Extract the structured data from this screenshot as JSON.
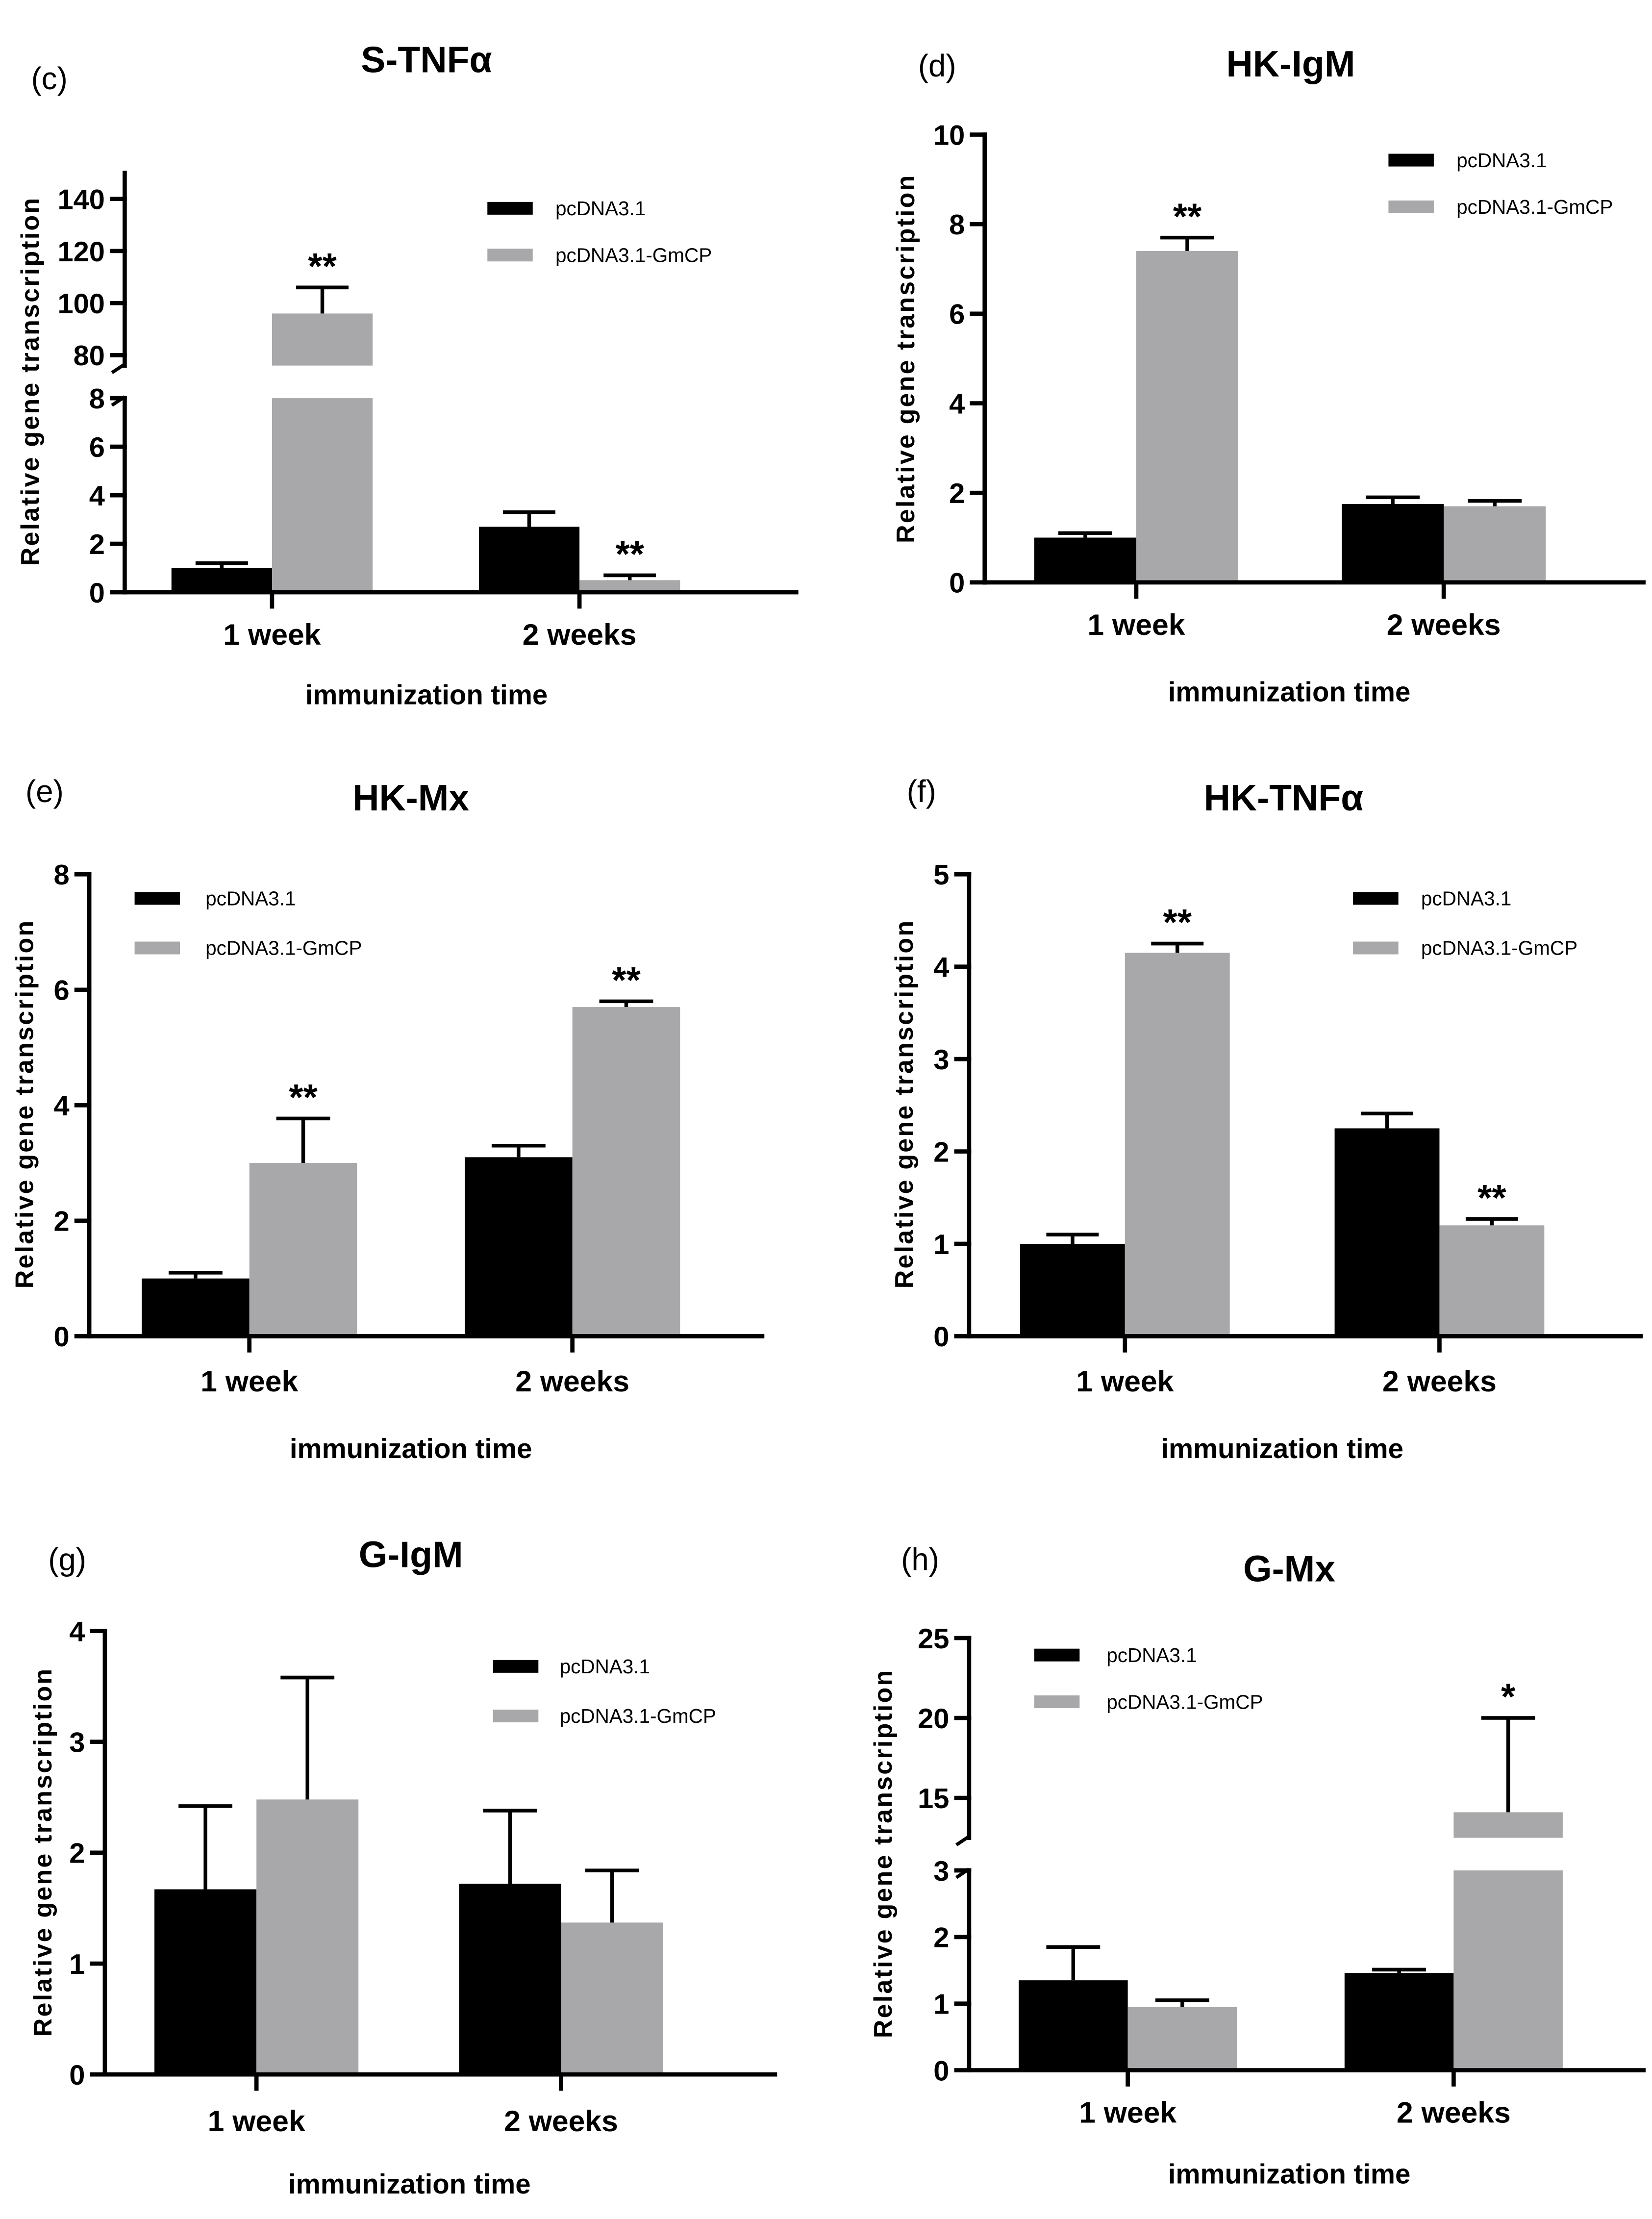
{
  "chart_data": [
    {
      "panel": "(c)",
      "type": "bar",
      "title": "S-TNFα",
      "xlabel": "immunization time",
      "ylabel": "Relative gene transcription",
      "categories": [
        "1 week",
        "2 weeks"
      ],
      "y_axis_break": true,
      "ylim": [
        0,
        8
      ],
      "yticks": [
        0,
        2,
        4,
        6,
        8
      ],
      "ylim_upper": [
        76,
        150
      ],
      "yticks_upper": [
        80,
        100,
        120,
        140
      ],
      "series": [
        {
          "name": "pcDNA3.1",
          "color": "#000000",
          "values": [
            1.0,
            2.7
          ],
          "errors": [
            0.2,
            0.6
          ],
          "significance": [
            null,
            null
          ]
        },
        {
          "name": "pcDNA3.1-GmCP",
          "color": "#a8a8aa",
          "values": [
            96,
            0.5
          ],
          "errors": [
            10,
            0.2
          ],
          "significance": [
            "**",
            "**"
          ]
        }
      ]
    },
    {
      "panel": "(d)",
      "type": "bar",
      "title": "HK-IgM",
      "xlabel": "immunization time",
      "ylabel": "Relative gene transcription",
      "categories": [
        "1 week",
        "2 weeks"
      ],
      "y_axis_break": false,
      "ylim": [
        0,
        10
      ],
      "yticks": [
        0,
        2,
        4,
        6,
        8,
        10
      ],
      "series": [
        {
          "name": "pcDNA3.1",
          "color": "#000000",
          "values": [
            1.0,
            1.75
          ],
          "errors": [
            0.1,
            0.15
          ],
          "significance": [
            null,
            null
          ]
        },
        {
          "name": "pcDNA3.1-GmCP",
          "color": "#a8a8aa",
          "values": [
            7.4,
            1.7
          ],
          "errors": [
            0.3,
            0.12
          ],
          "significance": [
            "**",
            null
          ]
        }
      ]
    },
    {
      "panel": "(e)",
      "type": "bar",
      "title": "HK-Mx",
      "xlabel": "immunization time",
      "ylabel": "Relative gene transcription",
      "categories": [
        "1 week",
        "2 weeks"
      ],
      "y_axis_break": false,
      "ylim": [
        0,
        8
      ],
      "yticks": [
        0,
        2,
        4,
        6,
        8
      ],
      "series": [
        {
          "name": "pcDNA3.1",
          "color": "#000000",
          "values": [
            1.0,
            3.1
          ],
          "errors": [
            0.1,
            0.2
          ],
          "significance": [
            null,
            null
          ]
        },
        {
          "name": "pcDNA3.1-GmCP",
          "color": "#a8a8aa",
          "values": [
            3.0,
            5.7
          ],
          "errors": [
            0.77,
            0.1
          ],
          "significance": [
            "**",
            "**"
          ]
        }
      ]
    },
    {
      "panel": "(f)",
      "type": "bar",
      "title": "HK-TNFα",
      "xlabel": "immunization time",
      "ylabel": "Relative gene transcription",
      "categories": [
        "1 week",
        "2 weeks"
      ],
      "y_axis_break": false,
      "ylim": [
        0,
        5
      ],
      "yticks": [
        0,
        1,
        2,
        3,
        4,
        5
      ],
      "series": [
        {
          "name": "pcDNA3.1",
          "color": "#000000",
          "values": [
            1.0,
            2.25
          ],
          "errors": [
            0.1,
            0.16
          ],
          "significance": [
            null,
            null
          ]
        },
        {
          "name": "pcDNA3.1-GmCP",
          "color": "#a8a8aa",
          "values": [
            4.15,
            1.2
          ],
          "errors": [
            0.1,
            0.07
          ],
          "significance": [
            "**",
            "**"
          ]
        }
      ]
    },
    {
      "panel": "(g)",
      "type": "bar",
      "title": "G-IgM",
      "xlabel": "immunization time",
      "ylabel": "Relative gene transcription",
      "categories": [
        "1 week",
        "2 weeks"
      ],
      "y_axis_break": false,
      "ylim": [
        0,
        4
      ],
      "yticks": [
        0,
        1,
        2,
        3,
        4
      ],
      "series": [
        {
          "name": "pcDNA3.1",
          "color": "#000000",
          "values": [
            1.67,
            1.72
          ],
          "errors": [
            0.75,
            0.66
          ],
          "significance": [
            null,
            null
          ]
        },
        {
          "name": "pcDNA3.1-GmCP",
          "color": "#a8a8aa",
          "values": [
            2.48,
            1.37
          ],
          "errors": [
            1.1,
            0.47
          ],
          "significance": [
            null,
            null
          ]
        }
      ]
    },
    {
      "panel": "(h)",
      "type": "bar",
      "title": "G-Mx",
      "xlabel": "immunization time",
      "ylabel": "Relative gene transcription",
      "categories": [
        "1 week",
        "2 weeks"
      ],
      "y_axis_break": true,
      "ylim": [
        0,
        3
      ],
      "yticks": [
        0,
        1,
        2,
        3
      ],
      "ylim_upper": [
        12.5,
        25
      ],
      "yticks_upper": [
        15,
        20,
        25
      ],
      "series": [
        {
          "name": "pcDNA3.1",
          "color": "#000000",
          "values": [
            1.35,
            1.46
          ],
          "errors": [
            0.5,
            0.05
          ],
          "significance": [
            null,
            null
          ]
        },
        {
          "name": "pcDNA3.1-GmCP",
          "color": "#a8a8aa",
          "values": [
            0.95,
            14.1
          ],
          "errors": [
            0.1,
            5.9
          ],
          "significance": [
            null,
            "*"
          ]
        }
      ]
    }
  ]
}
